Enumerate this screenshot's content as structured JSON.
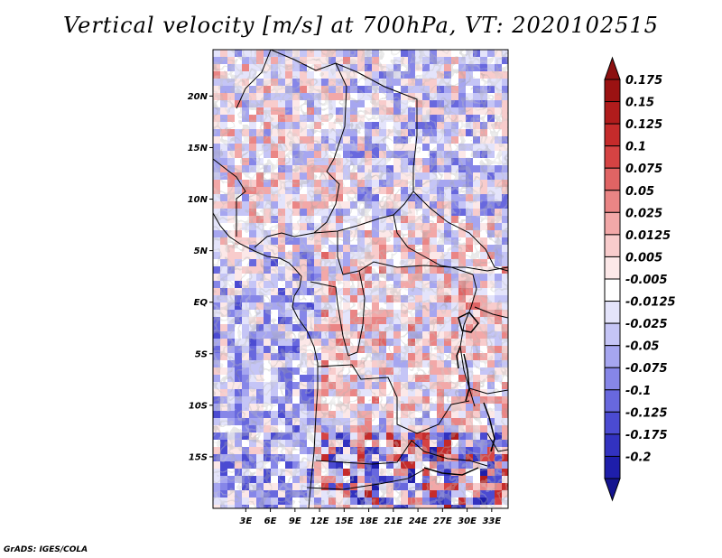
{
  "title": "Vertical velocity [m/s] at 700hPa, VT: 2020102515",
  "credit": "GrADS: IGES/COLA",
  "map": {
    "lon_range": [
      -1,
      35
    ],
    "lat_range": [
      -20,
      24.5
    ],
    "lon_ticks": [
      {
        "value": 3,
        "label": "3E"
      },
      {
        "value": 6,
        "label": "6E"
      },
      {
        "value": 9,
        "label": "9E"
      },
      {
        "value": 12,
        "label": "12E"
      },
      {
        "value": 15,
        "label": "15E"
      },
      {
        "value": 18,
        "label": "18E"
      },
      {
        "value": 21,
        "label": "21E"
      },
      {
        "value": 24,
        "label": "24E"
      },
      {
        "value": 27,
        "label": "27E"
      },
      {
        "value": 30,
        "label": "30E"
      },
      {
        "value": 33,
        "label": "33E"
      }
    ],
    "lat_ticks": [
      {
        "value": 20,
        "label": "20N"
      },
      {
        "value": 15,
        "label": "15N"
      },
      {
        "value": 10,
        "label": "10N"
      },
      {
        "value": 5,
        "label": "5N"
      },
      {
        "value": 0,
        "label": "EQ"
      },
      {
        "value": -5,
        "label": "5S"
      },
      {
        "value": -10,
        "label": "10S"
      },
      {
        "value": -15,
        "label": "15S"
      }
    ]
  },
  "colorbar": {
    "levels": [
      {
        "label": "0.175",
        "color": "#9b1212"
      },
      {
        "label": "0.15",
        "color": "#b01c1c"
      },
      {
        "label": "0.125",
        "color": "#c52b2b"
      },
      {
        "label": "0.1",
        "color": "#d54343"
      },
      {
        "label": "0.075",
        "color": "#e06464"
      },
      {
        "label": "0.05",
        "color": "#ea8585"
      },
      {
        "label": "0.025",
        "color": "#f2a8a8"
      },
      {
        "label": "0.0125",
        "color": "#f8cccc"
      },
      {
        "label": "0.005",
        "color": "#fce8e8"
      },
      {
        "label": "-0.005",
        "color": "#ffffff"
      },
      {
        "label": "-0.0125",
        "color": "#e4e4fb"
      },
      {
        "label": "-0.025",
        "color": "#c5c5f6"
      },
      {
        "label": "-0.05",
        "color": "#a6a6f0"
      },
      {
        "label": "-0.075",
        "color": "#8686e8"
      },
      {
        "label": "-0.1",
        "color": "#6868de"
      },
      {
        "label": "-0.125",
        "color": "#4b4bd2"
      },
      {
        "label": "-0.175",
        "color": "#3232c0"
      },
      {
        "label": "-0.2",
        "color": "#1e1eaa"
      }
    ],
    "top_cap_color": "#8c1010",
    "bottom_cap_color": "#14148f"
  }
}
